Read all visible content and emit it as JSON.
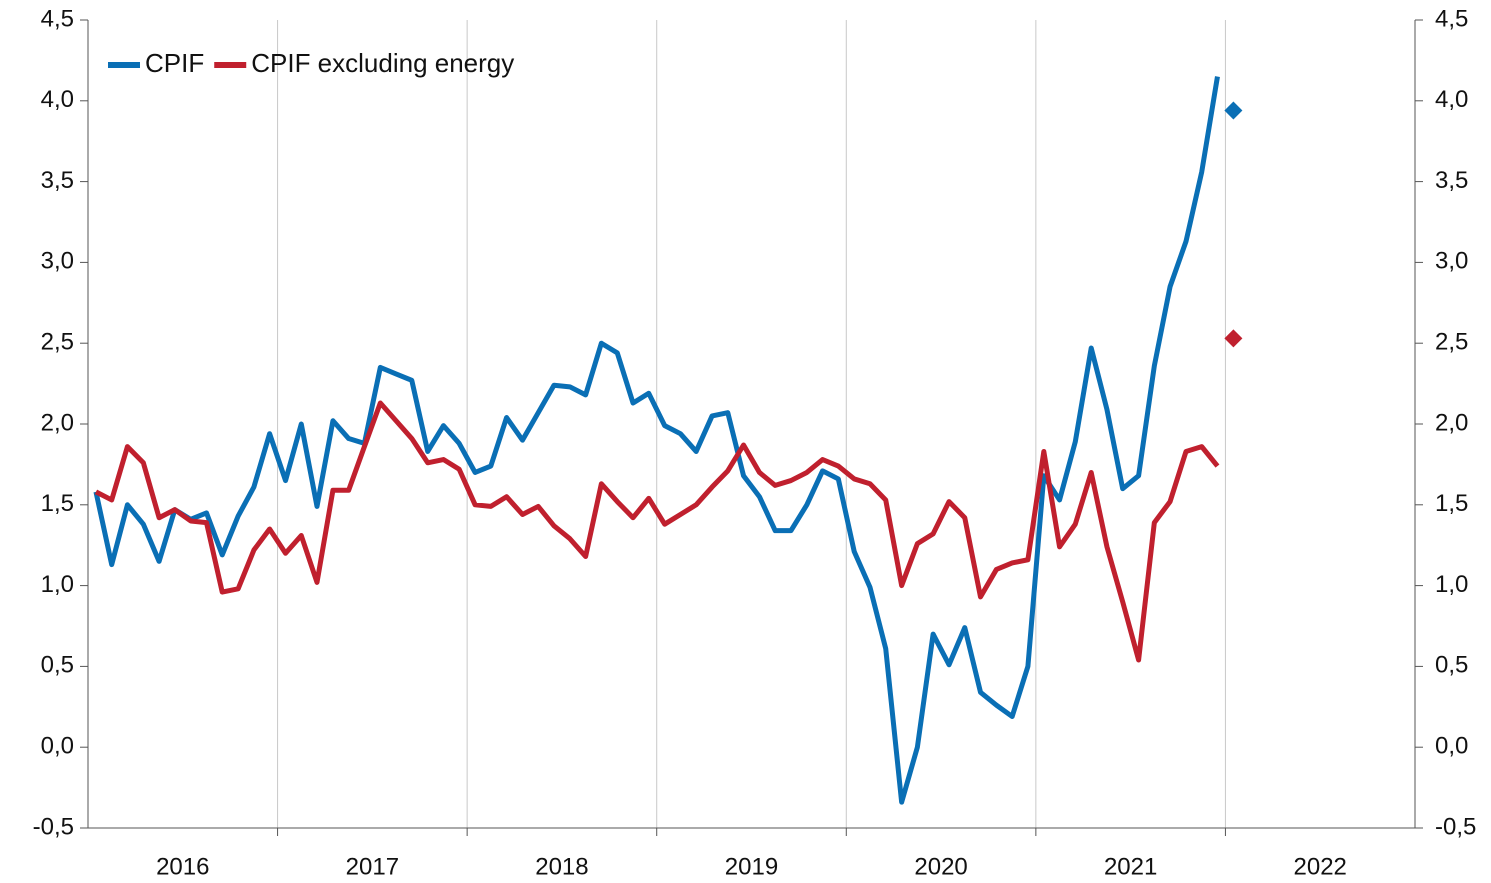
{
  "chart_data": {
    "type": "line",
    "x": [
      2016.042,
      2016.125,
      2016.208,
      2016.292,
      2016.375,
      2016.458,
      2016.542,
      2016.625,
      2016.708,
      2016.792,
      2016.875,
      2016.958,
      2017.042,
      2017.125,
      2017.208,
      2017.292,
      2017.375,
      2017.458,
      2017.542,
      2017.625,
      2017.708,
      2017.792,
      2017.875,
      2017.958,
      2018.042,
      2018.125,
      2018.208,
      2018.292,
      2018.375,
      2018.458,
      2018.542,
      2018.625,
      2018.708,
      2018.792,
      2018.875,
      2018.958,
      2019.042,
      2019.125,
      2019.208,
      2019.292,
      2019.375,
      2019.458,
      2019.542,
      2019.625,
      2019.708,
      2019.792,
      2019.875,
      2019.958,
      2020.042,
      2020.125,
      2020.208,
      2020.292,
      2020.375,
      2020.458,
      2020.542,
      2020.625,
      2020.708,
      2020.792,
      2020.875,
      2020.958,
      2021.042,
      2021.125,
      2021.208,
      2021.292,
      2021.375,
      2021.458,
      2021.542,
      2021.625,
      2021.708,
      2021.792,
      2021.875,
      2021.958
    ],
    "series": [
      {
        "name": "CPIF",
        "color": "#0a6fb5",
        "values": [
          1.58,
          1.13,
          1.5,
          1.38,
          1.15,
          1.47,
          1.41,
          1.45,
          1.19,
          1.43,
          1.61,
          1.94,
          1.65,
          2.0,
          1.49,
          2.02,
          1.91,
          1.88,
          2.35,
          2.31,
          2.27,
          1.83,
          1.99,
          1.88,
          1.7,
          1.74,
          2.04,
          1.9,
          2.07,
          2.24,
          2.23,
          2.18,
          2.5,
          2.44,
          2.13,
          2.19,
          1.99,
          1.94,
          1.83,
          2.05,
          2.07,
          1.68,
          1.55,
          1.34,
          1.34,
          1.5,
          1.71,
          1.66,
          1.21,
          0.99,
          0.61,
          -0.34,
          0.0,
          0.7,
          0.51,
          0.74,
          0.34,
          0.26,
          0.19,
          0.5,
          1.68,
          1.53,
          1.89,
          2.47,
          2.09,
          1.6,
          1.68,
          2.36,
          2.85,
          3.13,
          3.56,
          4.15
        ],
        "forecast": {
          "x": 2022.042,
          "value": 3.94
        }
      },
      {
        "name": "CPIF excluding energy",
        "color": "#c0202e",
        "values": [
          1.58,
          1.53,
          1.86,
          1.76,
          1.42,
          1.47,
          1.4,
          1.39,
          0.96,
          0.98,
          1.22,
          1.35,
          1.2,
          1.31,
          1.02,
          1.59,
          1.59,
          1.86,
          2.13,
          2.02,
          1.91,
          1.76,
          1.78,
          1.72,
          1.5,
          1.49,
          1.55,
          1.44,
          1.49,
          1.37,
          1.29,
          1.18,
          1.63,
          1.52,
          1.42,
          1.54,
          1.38,
          1.44,
          1.5,
          1.61,
          1.71,
          1.87,
          1.7,
          1.62,
          1.65,
          1.7,
          1.78,
          1.74,
          1.66,
          1.63,
          1.53,
          1.0,
          1.26,
          1.32,
          1.52,
          1.42,
          0.93,
          1.1,
          1.14,
          1.16,
          1.83,
          1.24,
          1.38,
          1.7,
          1.24,
          0.9,
          0.54,
          1.39,
          1.52,
          1.83,
          1.86,
          1.74
        ],
        "forecast": {
          "x": 2022.042,
          "value": 2.53
        }
      }
    ],
    "xlim": [
      2016,
      2023
    ],
    "xticks": [
      {
        "value": 2016.5,
        "label": "2016"
      },
      {
        "value": 2017.5,
        "label": "2017"
      },
      {
        "value": 2018.5,
        "label": "2018"
      },
      {
        "value": 2019.5,
        "label": "2019"
      },
      {
        "value": 2020.5,
        "label": "2020"
      },
      {
        "value": 2021.5,
        "label": "2021"
      },
      {
        "value": 2022.5,
        "label": "2022"
      }
    ],
    "xgrid": [
      2017,
      2018,
      2019,
      2020,
      2021,
      2022
    ],
    "ylim": [
      -0.5,
      4.5
    ],
    "yticks": [
      {
        "value": -0.5,
        "label": "-0,5"
      },
      {
        "value": 0,
        "label": "0,0"
      },
      {
        "value": 0.5,
        "label": "0,5"
      },
      {
        "value": 1,
        "label": "1,0"
      },
      {
        "value": 1.5,
        "label": "1,5"
      },
      {
        "value": 2,
        "label": "2,0"
      },
      {
        "value": 2.5,
        "label": "2,5"
      },
      {
        "value": 3,
        "label": "3,0"
      },
      {
        "value": 3.5,
        "label": "3,5"
      },
      {
        "value": 4,
        "label": "4,0"
      },
      {
        "value": 4.5,
        "label": "4,5"
      }
    ],
    "mirror_y_axis": true,
    "legend": "upper left"
  }
}
